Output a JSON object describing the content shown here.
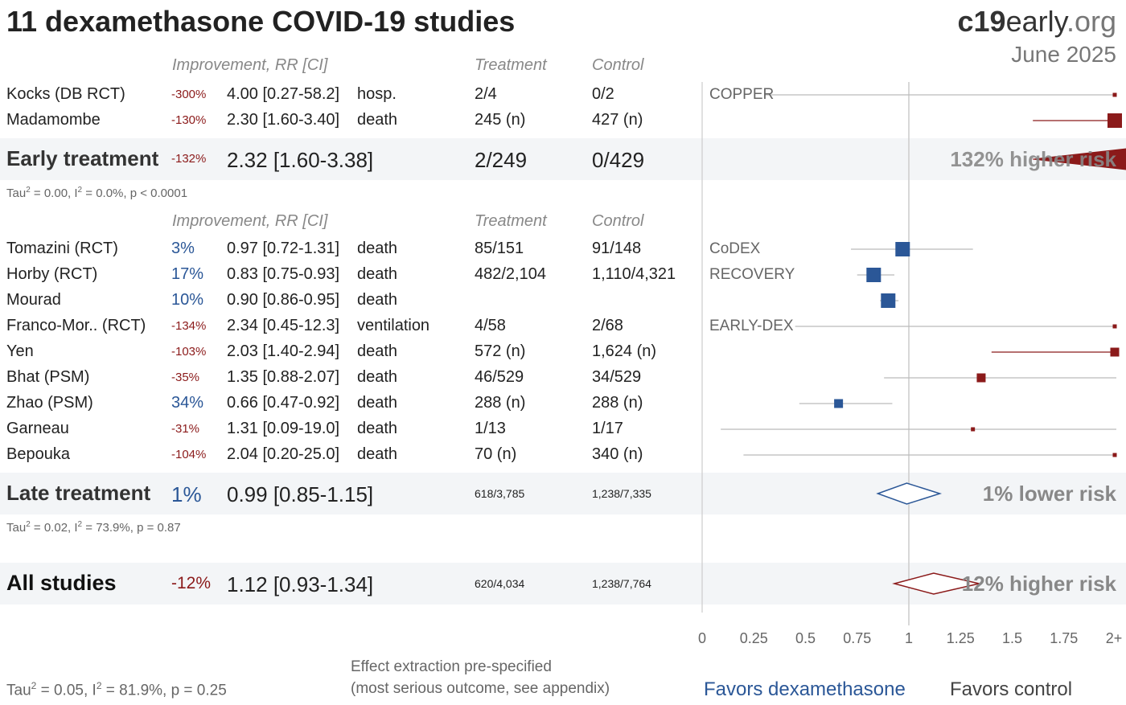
{
  "header": {
    "title": "11 dexamethasone COVID-19 studies",
    "site_bold": "c19",
    "site_mid": "early",
    "site_tail": ".org",
    "date": "June 2025"
  },
  "columns": {
    "improvement": "Improvement, RR [CI]",
    "treatment": "Treatment",
    "control": "Control"
  },
  "colors": {
    "negative": "#8b1a1a",
    "positive": "#2b5797",
    "grid": "#cccccc"
  },
  "early": {
    "studies": [
      {
        "name": "Kocks (DB RCT)",
        "improvement": "-300%",
        "rr_text": "4.00 [0.27-58.2]",
        "outcome": "hosp.",
        "treatment": "2/4",
        "control": "0/2",
        "trial": "COPPER"
      },
      {
        "name": "Madamombe",
        "improvement": "-130%",
        "rr_text": "2.30 [1.60-3.40]",
        "outcome": "death",
        "treatment": "245 (n)",
        "control": "427 (n)",
        "trial": ""
      }
    ],
    "summary": {
      "label": "Early treatment",
      "improvement": "-132%",
      "rr_text": "2.32 [1.60-3.38]",
      "treatment": "2/249",
      "control": "0/429",
      "risk": "132% higher risk"
    },
    "tau_value": " = 0.00, I",
    "tau_rest": " = 0.0%, p < 0.0001"
  },
  "late": {
    "studies": [
      {
        "name": "Tomazini (RCT)",
        "improvement": "3%",
        "rr_text": "0.97 [0.72-1.31]",
        "outcome": "death",
        "treatment": "85/151",
        "control": "91/148",
        "trial": "CoDEX"
      },
      {
        "name": "Horby (RCT)",
        "improvement": "17%",
        "rr_text": "0.83 [0.75-0.93]",
        "outcome": "death",
        "treatment": "482/2,104",
        "control": "1,110/4,321",
        "trial": "RECOVERY"
      },
      {
        "name": "Mourad",
        "improvement": "10%",
        "rr_text": "0.90 [0.86-0.95]",
        "outcome": "death",
        "treatment": "",
        "control": "",
        "trial": ""
      },
      {
        "name": "Franco-Mor.. (RCT)",
        "improvement": "-134%",
        "rr_text": "2.34 [0.45-12.3]",
        "outcome": "ventilation",
        "treatment": "4/58",
        "control": "2/68",
        "trial": "EARLY-DEX"
      },
      {
        "name": "Yen",
        "improvement": "-103%",
        "rr_text": "2.03 [1.40-2.94]",
        "outcome": "death",
        "treatment": "572 (n)",
        "control": "1,624 (n)",
        "trial": ""
      },
      {
        "name": "Bhat (PSM)",
        "improvement": "-35%",
        "rr_text": "1.35 [0.88-2.07]",
        "outcome": "death",
        "treatment": "46/529",
        "control": "34/529",
        "trial": ""
      },
      {
        "name": "Zhao (PSM)",
        "improvement": "34%",
        "rr_text": "0.66 [0.47-0.92]",
        "outcome": "death",
        "treatment": "288 (n)",
        "control": "288 (n)",
        "trial": ""
      },
      {
        "name": "Garneau",
        "improvement": "-31%",
        "rr_text": "1.31 [0.09-19.0]",
        "outcome": "death",
        "treatment": "1/13",
        "control": "1/17",
        "trial": ""
      },
      {
        "name": "Bepouka",
        "improvement": "-104%",
        "rr_text": "2.04 [0.20-25.0]",
        "outcome": "death",
        "treatment": "70 (n)",
        "control": "340 (n)",
        "trial": ""
      }
    ],
    "summary": {
      "label": "Late treatment",
      "improvement": "1%",
      "rr_text": "0.99 [0.85-1.15]",
      "treatment": "618/3,785",
      "control": "1,238/7,335",
      "risk": "1% lower risk"
    },
    "tau_value": " = 0.02, I",
    "tau_rest": " = 73.9%, p = 0.87"
  },
  "all": {
    "summary": {
      "label": "All studies",
      "improvement": "-12%",
      "rr_text": "1.12 [0.93-1.34]",
      "treatment": "620/4,034",
      "control": "1,238/7,764",
      "risk": "12% higher risk"
    },
    "tau_value": " = 0.05, I",
    "tau_rest": " = 81.9%, p = 0.25"
  },
  "tau_prefix": "Tau",
  "tau_exp": "2",
  "i_exp": "2",
  "note_line1": "Effect extraction pre-specified",
  "note_line2": "(most serious outcome, see appendix)",
  "favors_left": "Favors dexamethasone",
  "favors_right": "Favors control",
  "chart_data": {
    "type": "forest",
    "x_ticks": [
      "0",
      "0.25",
      "0.5",
      "0.75",
      "1",
      "1.25",
      "1.5",
      "1.75",
      "2+"
    ],
    "xlim": [
      0,
      2
    ],
    "reference_line": 1,
    "studies": [
      {
        "name": "Kocks (DB RCT)",
        "rr": 4.0,
        "lo": 0.27,
        "hi": 58.2,
        "size": "small",
        "direction": "negative"
      },
      {
        "name": "Madamombe",
        "rr": 2.3,
        "lo": 1.6,
        "hi": 3.4,
        "size": "large",
        "direction": "negative"
      },
      {
        "name": "Tomazini (RCT)",
        "rr": 0.97,
        "lo": 0.72,
        "hi": 1.31,
        "size": "large",
        "direction": "positive"
      },
      {
        "name": "Horby (RCT)",
        "rr": 0.83,
        "lo": 0.75,
        "hi": 0.93,
        "size": "large",
        "direction": "positive"
      },
      {
        "name": "Mourad",
        "rr": 0.9,
        "lo": 0.86,
        "hi": 0.95,
        "size": "large",
        "direction": "positive"
      },
      {
        "name": "Franco-Mor.. (RCT)",
        "rr": 2.34,
        "lo": 0.45,
        "hi": 12.3,
        "size": "small",
        "direction": "negative"
      },
      {
        "name": "Yen",
        "rr": 2.03,
        "lo": 1.4,
        "hi": 2.94,
        "size": "medium",
        "direction": "negative"
      },
      {
        "name": "Bhat (PSM)",
        "rr": 1.35,
        "lo": 0.88,
        "hi": 2.07,
        "size": "medium",
        "direction": "negative"
      },
      {
        "name": "Zhao (PSM)",
        "rr": 0.66,
        "lo": 0.47,
        "hi": 0.92,
        "size": "medium",
        "direction": "positive"
      },
      {
        "name": "Garneau",
        "rr": 1.31,
        "lo": 0.09,
        "hi": 19.0,
        "size": "small",
        "direction": "negative"
      },
      {
        "name": "Bepouka",
        "rr": 2.04,
        "lo": 0.2,
        "hi": 25.0,
        "size": "small",
        "direction": "negative"
      }
    ],
    "summaries": [
      {
        "name": "Early treatment",
        "rr": 2.32,
        "lo": 1.6,
        "hi": 3.38,
        "direction": "negative"
      },
      {
        "name": "Late treatment",
        "rr": 0.99,
        "lo": 0.85,
        "hi": 1.15,
        "direction": "positive"
      },
      {
        "name": "All studies",
        "rr": 1.12,
        "lo": 0.93,
        "hi": 1.34,
        "direction": "negative"
      }
    ]
  }
}
